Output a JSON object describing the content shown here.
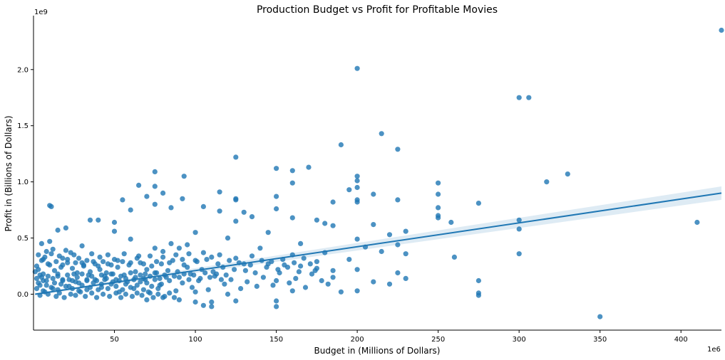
{
  "chart_data": {
    "type": "scatter",
    "title": "Production Budget vs  Profit for Profitable Movies",
    "xlabel": "Budget in (Millions of Dollars)",
    "ylabel": "Profit in (Billions of Dollars)",
    "x_offset_label": "1e6",
    "y_offset_label": "1e9",
    "xlim": [
      0,
      425
    ],
    "ylim": [
      -0.32,
      2.48
    ],
    "x_ticks": [
      50,
      100,
      150,
      200,
      250,
      300,
      350,
      400
    ],
    "x_tick_labels": [
      "50",
      "100",
      "150",
      "200",
      "250",
      "300",
      "350",
      "400"
    ],
    "y_ticks": [
      0.0,
      0.5,
      1.0,
      1.5,
      2.0
    ],
    "y_tick_labels": [
      "0.0",
      "0.5",
      "1.0",
      "1.5",
      "2.0"
    ],
    "grid": false,
    "point_color": "#1f77b4",
    "points": [
      [
        425,
        2.35
      ],
      [
        200,
        2.01
      ],
      [
        300,
        1.75
      ],
      [
        306,
        1.75
      ],
      [
        215,
        1.43
      ],
      [
        190,
        1.33
      ],
      [
        225,
        1.29
      ],
      [
        125,
        1.22
      ],
      [
        170,
        1.13
      ],
      [
        150,
        1.12
      ],
      [
        160,
        1.1
      ],
      [
        75,
        1.09
      ],
      [
        330,
        1.07
      ],
      [
        93,
        1.05
      ],
      [
        200,
        1.05
      ],
      [
        200,
        1.01
      ],
      [
        317,
        1.0
      ],
      [
        250,
        0.99
      ],
      [
        160,
        0.99
      ],
      [
        65,
        0.97
      ],
      [
        75,
        0.96
      ],
      [
        200,
        0.95
      ],
      [
        195,
        0.93
      ],
      [
        115,
        0.91
      ],
      [
        80,
        0.9
      ],
      [
        210,
        0.89
      ],
      [
        250,
        0.89
      ],
      [
        150,
        0.87
      ],
      [
        70,
        0.87
      ],
      [
        92,
        0.85
      ],
      [
        125,
        0.84
      ],
      [
        200,
        0.84
      ],
      [
        55,
        0.84
      ],
      [
        225,
        0.84
      ],
      [
        185,
        0.82
      ],
      [
        200,
        0.82
      ],
      [
        275,
        0.81
      ],
      [
        75,
        0.8
      ],
      [
        125,
        0.85
      ],
      [
        10,
        0.79
      ],
      [
        11,
        0.78
      ],
      [
        85,
        0.77
      ],
      [
        105,
        0.78
      ],
      [
        115,
        0.74
      ],
      [
        60,
        0.75
      ],
      [
        150,
        0.76
      ],
      [
        250,
        0.77
      ],
      [
        130,
        0.73
      ],
      [
        250,
        0.7
      ],
      [
        40,
        0.66
      ],
      [
        35,
        0.66
      ],
      [
        300,
        0.66
      ],
      [
        250,
        0.68
      ],
      [
        160,
        0.68
      ],
      [
        175,
        0.66
      ],
      [
        410,
        0.64
      ],
      [
        258,
        0.64
      ],
      [
        125,
        0.65
      ],
      [
        50,
        0.64
      ],
      [
        135,
        0.69
      ],
      [
        210,
        0.62
      ],
      [
        180,
        0.63
      ],
      [
        185,
        0.61
      ],
      [
        300,
        0.58
      ],
      [
        20,
        0.59
      ],
      [
        15,
        0.57
      ],
      [
        230,
        0.56
      ],
      [
        50,
        0.56
      ],
      [
        220,
        0.53
      ],
      [
        100,
        0.55
      ],
      [
        145,
        0.55
      ],
      [
        120,
        0.5
      ],
      [
        60,
        0.49
      ],
      [
        200,
        0.49
      ],
      [
        165,
        0.45
      ],
      [
        225,
        0.44
      ],
      [
        205,
        0.42
      ],
      [
        30,
        0.43
      ],
      [
        90,
        0.41
      ],
      [
        140,
        0.41
      ],
      [
        215,
        0.38
      ],
      [
        180,
        0.37
      ],
      [
        230,
        0.36
      ],
      [
        300,
        0.36
      ],
      [
        160,
        0.35
      ],
      [
        110,
        0.33
      ],
      [
        260,
        0.33
      ],
      [
        195,
        0.31
      ],
      [
        175,
        0.29
      ],
      [
        130,
        0.27
      ],
      [
        200,
        0.22
      ],
      [
        225,
        0.19
      ],
      [
        185,
        0.15
      ],
      [
        230,
        0.14
      ],
      [
        150,
        0.12
      ],
      [
        210,
        0.11
      ],
      [
        220,
        0.09
      ],
      [
        275,
        0.12
      ],
      [
        275,
        0.01
      ],
      [
        275,
        -0.01
      ],
      [
        190,
        0.02
      ],
      [
        200,
        0.03
      ],
      [
        160,
        0.03
      ],
      [
        120,
        0.0
      ],
      [
        100,
        0.02
      ],
      [
        150,
        -0.06
      ],
      [
        150,
        -0.11
      ],
      [
        110,
        -0.07
      ],
      [
        105,
        -0.1
      ],
      [
        110,
        -0.11
      ],
      [
        125,
        -0.06
      ],
      [
        90,
        -0.05
      ],
      [
        100,
        -0.07
      ],
      [
        80,
        -0.03
      ],
      [
        70,
        -0.05
      ],
      [
        350,
        -0.2
      ],
      [
        5,
        0.45
      ],
      [
        10,
        0.47
      ],
      [
        12,
        0.4
      ],
      [
        8,
        0.38
      ],
      [
        6,
        0.31
      ],
      [
        20,
        0.39
      ],
      [
        25,
        0.35
      ],
      [
        18,
        0.32
      ],
      [
        30,
        0.28
      ],
      [
        40,
        0.25
      ],
      [
        50,
        0.31
      ],
      [
        55,
        0.29
      ],
      [
        65,
        0.34
      ],
      [
        75,
        0.41
      ],
      [
        80,
        0.38
      ],
      [
        85,
        0.45
      ],
      [
        95,
        0.44
      ],
      [
        105,
        0.37
      ],
      [
        115,
        0.35
      ],
      [
        125,
        0.32
      ],
      [
        135,
        0.34
      ],
      [
        145,
        0.27
      ],
      [
        155,
        0.26
      ],
      [
        165,
        0.25
      ],
      [
        175,
        0.23
      ],
      [
        185,
        0.21
      ],
      [
        95,
        0.24
      ],
      [
        70,
        0.22
      ],
      [
        45,
        0.19
      ],
      [
        35,
        0.2
      ],
      [
        25,
        0.18
      ],
      [
        15,
        0.16
      ],
      [
        5,
        0.15
      ],
      [
        3,
        0.1
      ],
      [
        8,
        0.08
      ],
      [
        12,
        0.05
      ],
      [
        18,
        0.12
      ],
      [
        22,
        0.07
      ],
      [
        28,
        0.1
      ],
      [
        33,
        0.04
      ],
      [
        38,
        0.13
      ],
      [
        42,
        0.06
      ],
      [
        48,
        0.09
      ],
      [
        53,
        0.02
      ],
      [
        58,
        0.11
      ],
      [
        62,
        0.05
      ],
      [
        68,
        0.14
      ],
      [
        72,
        0.01
      ],
      [
        78,
        0.08
      ],
      [
        82,
        0.15
      ],
      [
        88,
        0.03
      ],
      [
        92,
        0.1
      ],
      [
        98,
        0.06
      ],
      [
        102,
        0.12
      ],
      [
        108,
        0.04
      ],
      [
        112,
        0.16
      ],
      [
        118,
        0.09
      ],
      [
        122,
        0.13
      ],
      [
        128,
        0.05
      ],
      [
        132,
        0.11
      ],
      [
        138,
        0.07
      ],
      [
        142,
        0.15
      ],
      [
        148,
        0.08
      ],
      [
        152,
        0.19
      ],
      [
        158,
        0.1
      ],
      [
        162,
        0.14
      ],
      [
        168,
        0.06
      ],
      [
        172,
        0.18
      ],
      [
        178,
        0.12
      ],
      [
        182,
        0.09
      ],
      [
        4,
        -0.01
      ],
      [
        7,
        0.02
      ],
      [
        9,
        0.0
      ],
      [
        14,
        -0.02
      ],
      [
        16,
        0.01
      ],
      [
        19,
        -0.03
      ],
      [
        23,
        0.0
      ],
      [
        26,
        -0.01
      ],
      [
        29,
        0.02
      ],
      [
        32,
        -0.02
      ],
      [
        36,
        0.01
      ],
      [
        39,
        -0.03
      ],
      [
        43,
        0.0
      ],
      [
        47,
        -0.02
      ],
      [
        51,
        0.01
      ],
      [
        54,
        -0.03
      ],
      [
        57,
        0.0
      ],
      [
        61,
        -0.02
      ],
      [
        64,
        0.01
      ],
      [
        67,
        -0.01
      ],
      [
        71,
        0.02
      ],
      [
        74,
        -0.03
      ],
      [
        77,
        0.0
      ],
      [
        81,
        -0.02
      ],
      [
        84,
        0.01
      ],
      [
        87,
        -0.03
      ],
      [
        1,
        0.2
      ],
      [
        2,
        0.25
      ],
      [
        3,
        0.22
      ],
      [
        6,
        0.18
      ],
      [
        10,
        0.26
      ],
      [
        13,
        0.21
      ],
      [
        17,
        0.24
      ],
      [
        21,
        0.28
      ],
      [
        24,
        0.23
      ],
      [
        27,
        0.19
      ],
      [
        31,
        0.26
      ],
      [
        34,
        0.17
      ],
      [
        37,
        0.29
      ],
      [
        41,
        0.22
      ],
      [
        44,
        0.16
      ],
      [
        46,
        0.27
      ],
      [
        49,
        0.18
      ],
      [
        52,
        0.24
      ],
      [
        56,
        0.17
      ],
      [
        59,
        0.26
      ],
      [
        63,
        0.2
      ],
      [
        66,
        0.28
      ],
      [
        69,
        0.18
      ],
      [
        73,
        0.25
      ],
      [
        76,
        0.19
      ],
      [
        79,
        0.27
      ],
      [
        83,
        0.21
      ],
      [
        86,
        0.3
      ],
      [
        89,
        0.2
      ],
      [
        93,
        0.26
      ],
      [
        97,
        0.18
      ],
      [
        101,
        0.29
      ],
      [
        104,
        0.22
      ],
      [
        107,
        0.31
      ],
      [
        111,
        0.2
      ],
      [
        114,
        0.27
      ],
      [
        117,
        0.24
      ],
      [
        121,
        0.3
      ],
      [
        124,
        0.22
      ],
      [
        127,
        0.28
      ],
      [
        131,
        0.21
      ],
      [
        134,
        0.26
      ],
      [
        137,
        0.19
      ],
      [
        141,
        0.3
      ],
      [
        144,
        0.24
      ],
      [
        147,
        0.29
      ],
      [
        151,
        0.22
      ],
      [
        154,
        0.31
      ],
      [
        157,
        0.24
      ],
      [
        161,
        0.28
      ],
      [
        164,
        0.2
      ],
      [
        167,
        0.32
      ],
      [
        171,
        0.27
      ],
      [
        174,
        0.21
      ],
      [
        2,
        0.05
      ],
      [
        4,
        0.08
      ],
      [
        6,
        0.03
      ],
      [
        8,
        0.12
      ],
      [
        11,
        0.06
      ],
      [
        13,
        0.1
      ],
      [
        15,
        0.04
      ],
      [
        17,
        0.09
      ],
      [
        20,
        0.07
      ],
      [
        22,
        0.13
      ],
      [
        24,
        0.05
      ],
      [
        26,
        0.11
      ],
      [
        28,
        0.03
      ],
      [
        30,
        0.08
      ],
      [
        33,
        0.12
      ],
      [
        35,
        0.06
      ],
      [
        37,
        0.1
      ],
      [
        40,
        0.04
      ],
      [
        42,
        0.09
      ],
      [
        44,
        0.13
      ],
      [
        46,
        0.05
      ],
      [
        49,
        0.11
      ],
      [
        51,
        0.07
      ],
      [
        53,
        0.12
      ],
      [
        55,
        0.04
      ],
      [
        57,
        0.09
      ],
      [
        60,
        0.06
      ],
      [
        62,
        0.13
      ],
      [
        64,
        0.08
      ],
      [
        66,
        0.11
      ],
      [
        68,
        0.04
      ],
      [
        70,
        0.1
      ],
      [
        73,
        0.07
      ],
      [
        75,
        0.13
      ],
      [
        77,
        0.05
      ],
      [
        79,
        0.09
      ],
      [
        3,
        0.35
      ],
      [
        5,
        0.3
      ],
      [
        7,
        0.33
      ],
      [
        9,
        0.27
      ],
      [
        11,
        0.36
      ],
      [
        14,
        0.29
      ],
      [
        16,
        0.34
      ],
      [
        18,
        0.26
      ],
      [
        21,
        0.31
      ],
      [
        23,
        0.37
      ],
      [
        26,
        0.28
      ],
      [
        28,
        0.32
      ],
      [
        31,
        0.25
      ],
      [
        33,
        0.3
      ],
      [
        36,
        0.36
      ],
      [
        38,
        0.27
      ],
      [
        41,
        0.33
      ],
      [
        43,
        0.29
      ],
      [
        46,
        0.35
      ],
      [
        48,
        0.26
      ],
      [
        52,
        0.3
      ],
      [
        56,
        0.36
      ],
      [
        60,
        0.28
      ],
      [
        64,
        0.32
      ],
      [
        68,
        0.27
      ],
      [
        72,
        0.34
      ],
      [
        76,
        0.29
      ],
      [
        80,
        0.33
      ],
      [
        84,
        0.28
      ],
      [
        88,
        0.35
      ],
      [
        92,
        0.31
      ],
      [
        96,
        0.36
      ],
      [
        100,
        0.3
      ],
      [
        2,
        0.14
      ],
      [
        4,
        0.17
      ],
      [
        6,
        0.12
      ],
      [
        9,
        0.16
      ],
      [
        12,
        0.14
      ],
      [
        15,
        0.18
      ],
      [
        18,
        0.13
      ],
      [
        21,
        0.17
      ],
      [
        24,
        0.12
      ],
      [
        27,
        0.15
      ],
      [
        30,
        0.18
      ],
      [
        33,
        0.13
      ],
      [
        36,
        0.16
      ],
      [
        39,
        0.12
      ],
      [
        42,
        0.17
      ],
      [
        45,
        0.14
      ],
      [
        48,
        0.18
      ],
      [
        51,
        0.13
      ],
      [
        54,
        0.16
      ],
      [
        57,
        0.14
      ],
      [
        60,
        0.19
      ],
      [
        63,
        0.15
      ],
      [
        66,
        0.17
      ],
      [
        69,
        0.13
      ],
      [
        72,
        0.16
      ],
      [
        75,
        0.19
      ],
      [
        78,
        0.14
      ],
      [
        81,
        0.17
      ],
      [
        84,
        0.12
      ],
      [
        87,
        0.16
      ],
      [
        90,
        0.15
      ],
      [
        93,
        0.18
      ],
      [
        96,
        0.13
      ],
      [
        99,
        0.17
      ],
      [
        103,
        0.14
      ],
      [
        106,
        0.19
      ],
      [
        109,
        0.15
      ],
      [
        113,
        0.18
      ],
      [
        116,
        0.13
      ],
      [
        119,
        0.17
      ]
    ],
    "regression": {
      "x": [
        1,
        425
      ],
      "y": [
        0.0,
        0.9
      ],
      "ci_low": [
        -0.01,
        0.84
      ],
      "ci_high": [
        0.01,
        0.96
      ]
    }
  }
}
